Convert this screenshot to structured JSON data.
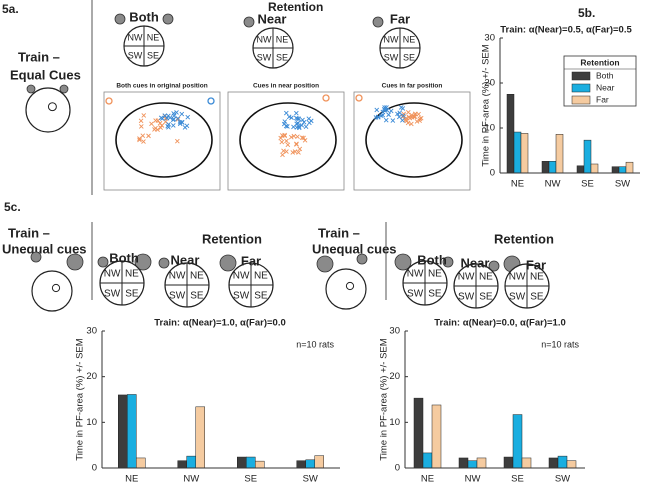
{
  "labels": {
    "fig_a": "5a.",
    "fig_b": "5b.",
    "fig_c": "5c.",
    "retention": "Retention",
    "train": "Train –",
    "equal_cues": "Equal Cues",
    "unequal_cues": "Unequal cues",
    "both": "Both",
    "near": "Near",
    "far": "Far",
    "quadrants": [
      "NW",
      "NE",
      "SW",
      "SE"
    ],
    "panels": [
      "Both cues in original position",
      "Cues in near position",
      "Cues in far position"
    ]
  },
  "chart_data": [
    {
      "type": "bar",
      "title": "Train: α(Near)=0.5, α(Far)=0.5",
      "ylabel": "Time in PF-area (%) +/- SEM",
      "categories": [
        "NE",
        "NW",
        "SE",
        "SW"
      ],
      "series": [
        {
          "name": "Both",
          "color": "#3d3d3d",
          "values": [
            17.5,
            2.6,
            1.6,
            1.4
          ]
        },
        {
          "name": "Near",
          "color": "#1aaee0",
          "values": [
            9.1,
            2.6,
            7.3,
            1.4
          ]
        },
        {
          "name": "Far",
          "color": "#f5cba0",
          "values": [
            8.8,
            8.6,
            2.0,
            2.4
          ]
        }
      ],
      "ylim": [
        0,
        30
      ],
      "yticks": [
        0,
        10,
        20,
        30
      ],
      "legend": "upper right",
      "legend_title": "Retention"
    },
    {
      "type": "bar",
      "title": "Train: α(Near)=1.0, α(Far)=0.0",
      "ylabel": "Time in PF-area (%) +/- SEM",
      "categories": [
        "NE",
        "NW",
        "SE",
        "SW"
      ],
      "series": [
        {
          "name": "Both",
          "color": "#3d3d3d",
          "values": [
            16.0,
            1.6,
            2.4,
            1.6
          ]
        },
        {
          "name": "Near",
          "color": "#1aaee0",
          "values": [
            16.1,
            2.6,
            2.4,
            1.8
          ]
        },
        {
          "name": "Far",
          "color": "#f5cba0",
          "values": [
            2.2,
            13.4,
            1.5,
            2.7
          ]
        }
      ],
      "ylim": [
        0,
        30
      ],
      "yticks": [
        0,
        10,
        20,
        30
      ],
      "annotation": "n=10 rats"
    },
    {
      "type": "bar",
      "title": "Train: α(Near)=0.0, α(Far)=1.0",
      "ylabel": "Time in PF-area (%) +/- SEM",
      "categories": [
        "NE",
        "NW",
        "SE",
        "SW"
      ],
      "series": [
        {
          "name": "Both",
          "color": "#3d3d3d",
          "values": [
            15.3,
            2.2,
            2.4,
            2.2
          ]
        },
        {
          "name": "Near",
          "color": "#1aaee0",
          "values": [
            3.3,
            1.6,
            11.7,
            2.6
          ]
        },
        {
          "name": "Far",
          "color": "#f5cba0",
          "values": [
            13.8,
            2.2,
            2.2,
            1.6
          ]
        }
      ],
      "ylim": [
        0,
        30
      ],
      "yticks": [
        0,
        10,
        20,
        30
      ],
      "annotation": "n=10 rats"
    }
  ]
}
